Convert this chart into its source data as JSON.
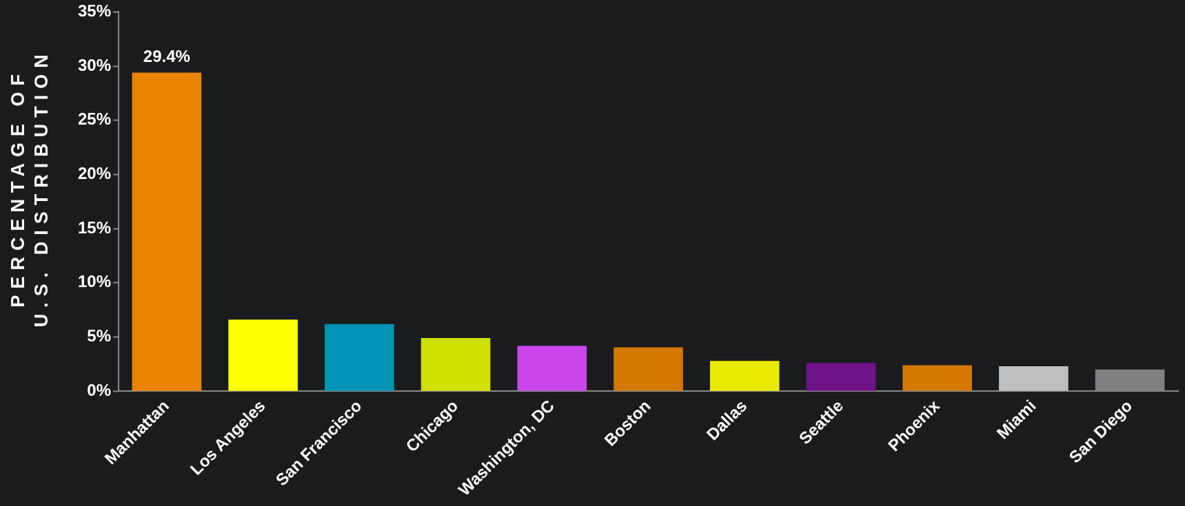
{
  "chart_data": {
    "type": "bar",
    "ylabel": "PERCENTAGE OF\nU.S. DISTRIBUTION",
    "categories": [
      "Manhattan",
      "Los Angeles",
      "San Francisco",
      "Chicago",
      "Washington, DC",
      "Boston",
      "Dallas",
      "Seattle",
      "Phoenix",
      "Miami",
      "San Diego"
    ],
    "values": [
      29.4,
      6.6,
      6.2,
      4.9,
      4.2,
      4.05,
      2.8,
      2.6,
      2.4,
      2.3,
      2.0
    ],
    "colors": [
      "#ea8400",
      "#ffff00",
      "#0095b6",
      "#cfdf00",
      "#c945e8",
      "#d47800",
      "#e9e800",
      "#701288",
      "#d47800",
      "#bfbfbf",
      "#808080"
    ],
    "value_labels": [
      "29.4%",
      null,
      null,
      null,
      null,
      null,
      null,
      null,
      null,
      null,
      null
    ],
    "ylim": [
      0,
      35
    ],
    "yticks": [
      {
        "value": 0,
        "label": "0%"
      },
      {
        "value": 5,
        "label": "5%"
      },
      {
        "value": 10,
        "label": "10%"
      },
      {
        "value": 15,
        "label": "15%"
      },
      {
        "value": 20,
        "label": "20%"
      },
      {
        "value": 25,
        "label": "25%"
      },
      {
        "value": 30,
        "label": "30%"
      },
      {
        "value": 35,
        "label": "35%"
      }
    ],
    "grid": false,
    "legend": false
  }
}
